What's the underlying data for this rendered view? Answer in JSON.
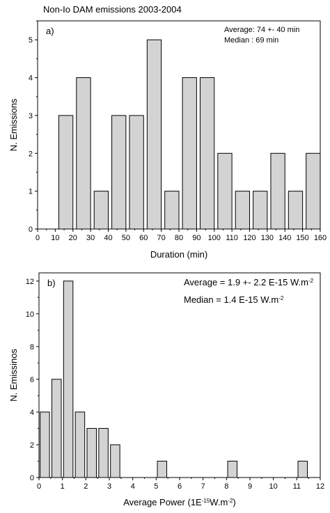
{
  "figure_title": "Non-Io DAM emissions 2003-2004",
  "chart_data": [
    {
      "type": "bar",
      "panel_label": "a)",
      "annotations": [
        "Average: 74 +- 40 min",
        "Median : 69 min"
      ],
      "xlabel": "Duration (min)",
      "ylabel": "N. Emissions",
      "xlim": [
        0,
        160
      ],
      "ylim": [
        0,
        5.5
      ],
      "xticks": [
        0,
        10,
        20,
        30,
        40,
        50,
        60,
        70,
        80,
        90,
        100,
        110,
        120,
        130,
        140,
        150,
        160
      ],
      "yticks": [
        0,
        1,
        2,
        3,
        4,
        5
      ],
      "bar_width": 8,
      "x": [
        16,
        26,
        36,
        46,
        56,
        66,
        76,
        86,
        96,
        106,
        116,
        126,
        136,
        146,
        156
      ],
      "values": [
        3,
        4,
        1,
        3,
        3,
        5,
        1,
        4,
        4,
        2,
        1,
        1,
        2,
        1,
        2
      ],
      "bar_color": "#d3d3d3",
      "edge_color": "#000000"
    },
    {
      "type": "bar",
      "panel_label": "b)",
      "annotations": [
        {
          "text": "Average = 1.9 +- 2.2 E-15 W.m",
          "sup": "-2"
        },
        {
          "text": "Median = 1.4 E-15 W.m",
          "sup": "-2"
        }
      ],
      "xlabel": {
        "pre": "Average Power (1E",
        "sup": "-15",
        "post": "W.m",
        "sup2": "-2",
        "end": ")"
      },
      "ylabel": "N. Emissinos",
      "xlim": [
        0,
        12
      ],
      "ylim": [
        0,
        12.5
      ],
      "xticks": [
        0,
        1,
        2,
        3,
        4,
        5,
        6,
        7,
        8,
        9,
        10,
        11,
        12
      ],
      "yticks": [
        0,
        2,
        4,
        6,
        8,
        10,
        12
      ],
      "bar_width": 0.4,
      "x": [
        0.25,
        0.75,
        1.25,
        1.75,
        2.25,
        2.75,
        3.25,
        5.25,
        8.25,
        11.25
      ],
      "values": [
        4,
        6,
        12,
        4,
        3,
        3,
        2,
        1,
        1,
        1
      ],
      "bar_color": "#d3d3d3",
      "edge_color": "#000000"
    }
  ]
}
